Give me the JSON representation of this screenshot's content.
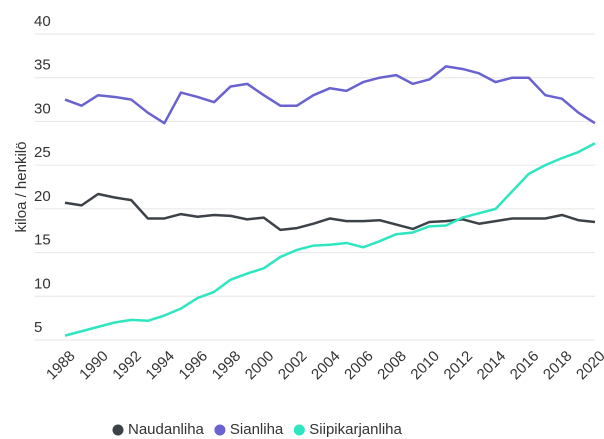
{
  "chart_data": {
    "type": "line",
    "y_label": "kiloa / henkilö",
    "x": [
      1988,
      1989,
      1990,
      1991,
      1992,
      1993,
      1994,
      1995,
      1996,
      1997,
      1998,
      1999,
      2000,
      2001,
      2002,
      2003,
      2004,
      2005,
      2006,
      2007,
      2008,
      2009,
      2010,
      2011,
      2012,
      2013,
      2014,
      2015,
      2016,
      2017,
      2018,
      2019,
      2020
    ],
    "xlim": [
      1988,
      2020
    ],
    "xticks": [
      1988,
      1990,
      1992,
      1994,
      1996,
      1998,
      2000,
      2002,
      2004,
      2006,
      2008,
      2010,
      2012,
      2014,
      2016,
      2018,
      2020
    ],
    "ylim": [
      5,
      40
    ],
    "yticks": [
      5,
      10,
      15,
      20,
      25,
      30,
      35,
      40
    ],
    "grid": true,
    "legend": "bottom",
    "series": [
      {
        "name": "Naudanliha",
        "color": "#3d4148",
        "values": [
          20.7,
          20.4,
          21.7,
          21.3,
          21,
          18.9,
          18.9,
          19.4,
          19.1,
          19.3,
          19.2,
          18.8,
          19,
          17.6,
          17.8,
          18.3,
          18.9,
          18.6,
          18.6,
          18.7,
          18.2,
          17.7,
          18.5,
          18.6,
          18.8,
          18.3,
          18.6,
          18.9,
          18.9,
          18.9,
          19.3,
          18.7,
          18.5
        ]
      },
      {
        "name": "Sianliha",
        "color": "#6a62cf",
        "values": [
          32.5,
          31.8,
          33,
          32.8,
          32.5,
          31,
          29.8,
          33.3,
          32.8,
          32.2,
          34,
          34.3,
          33,
          31.8,
          31.8,
          33,
          33.8,
          33.5,
          34.5,
          35,
          35.3,
          34.3,
          34.8,
          36.3,
          36,
          35.5,
          34.5,
          35,
          35,
          33,
          32.6,
          31,
          29.8
        ]
      },
      {
        "name": "Siipikarjanliha",
        "color": "#2ee6c0",
        "values": [
          5.5,
          6,
          6.5,
          7,
          7.3,
          7.2,
          7.8,
          8.6,
          9.8,
          10.5,
          11.9,
          12.6,
          13.2,
          14.5,
          15.3,
          15.8,
          15.9,
          16.1,
          15.6,
          16.3,
          17.1,
          17.3,
          18,
          18.1,
          19,
          19.5,
          20,
          22,
          24,
          25,
          25.8,
          26.5,
          27.5
        ]
      }
    ]
  }
}
